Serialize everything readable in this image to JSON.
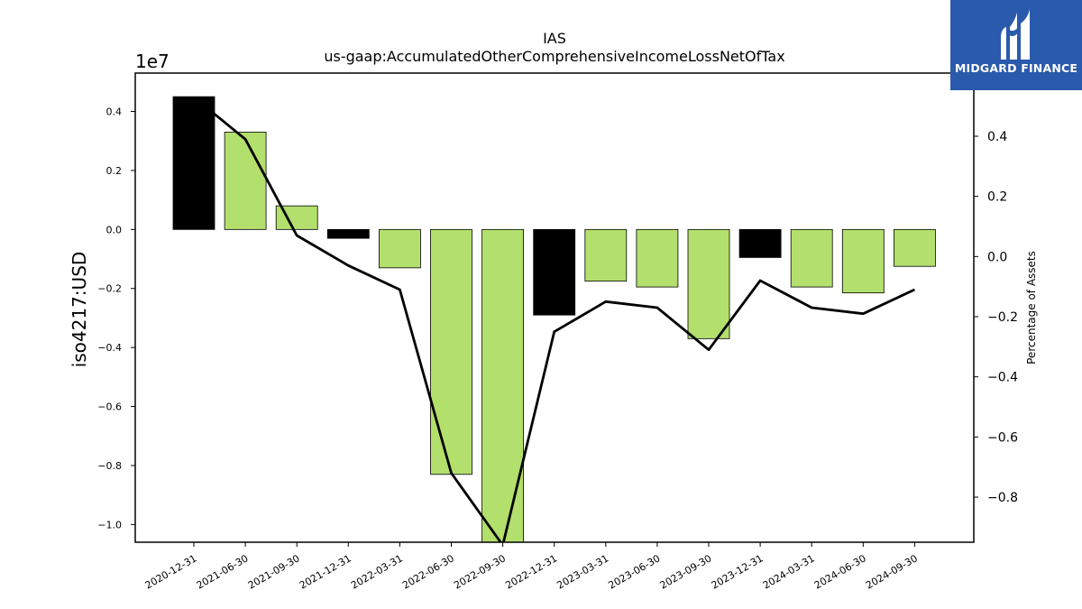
{
  "chart_data": {
    "type": "bar",
    "title": "IAS",
    "subtitle": "us-gaap:AccumulatedOtherComprehensiveIncomeLossNetOfTax",
    "ylabel": "iso4217:USD",
    "y2label": "Percentage of Assets",
    "offset_label": "1e7",
    "categories": [
      "2020-12-31",
      "2021-06-30",
      "2021-09-30",
      "2021-12-31",
      "2022-03-31",
      "2022-06-30",
      "2022-09-30",
      "2022-12-31",
      "2023-03-31",
      "2023-06-30",
      "2023-09-30",
      "2023-12-31",
      "2024-03-31",
      "2024-06-30",
      "2024-09-30"
    ],
    "values": [
      4500000,
      3300000,
      800000,
      -300000,
      -1300000,
      -8300000,
      -10600000,
      -2900000,
      -1750000,
      -1950000,
      -3700000,
      -950000,
      -1950000,
      -2150000,
      -1250000
    ],
    "bar_colors": [
      "#000000",
      "#b3df6d",
      "#b3df6d",
      "#000000",
      "#b3df6d",
      "#b3df6d",
      "#b3df6d",
      "#000000",
      "#b3df6d",
      "#b3df6d",
      "#b3df6d",
      "#000000",
      "#b3df6d",
      "#b3df6d",
      "#b3df6d"
    ],
    "line_values": [
      0.53,
      0.39,
      0.07,
      -0.03,
      -0.11,
      -0.72,
      -0.96,
      -0.25,
      -0.15,
      -0.17,
      -0.31,
      -0.08,
      -0.17,
      -0.19,
      -0.11
    ],
    "line_color": "#000000",
    "ylim": [
      -10600000,
      5300000
    ],
    "y2lim": [
      -0.95,
      0.61
    ],
    "yticks": [
      -1.0,
      -0.8,
      -0.6,
      -0.4,
      -0.2,
      0.0,
      0.2,
      0.4
    ],
    "ytick_labels": [
      "−1.0",
      "−0.8",
      "−0.6",
      "−0.4",
      "−0.2",
      "0.0",
      "0.2",
      "0.4"
    ],
    "y2ticks": [
      -0.8,
      -0.6,
      -0.4,
      -0.2,
      0.0,
      0.2,
      0.4
    ],
    "y2tick_labels": [
      "−0.8",
      "−0.6",
      "−0.4",
      "−0.2",
      "0.0",
      "0.2",
      "0.4"
    ],
    "grid": false
  },
  "logo": {
    "text": "MIDGARD FINANCE",
    "background": "#2a5aab"
  }
}
